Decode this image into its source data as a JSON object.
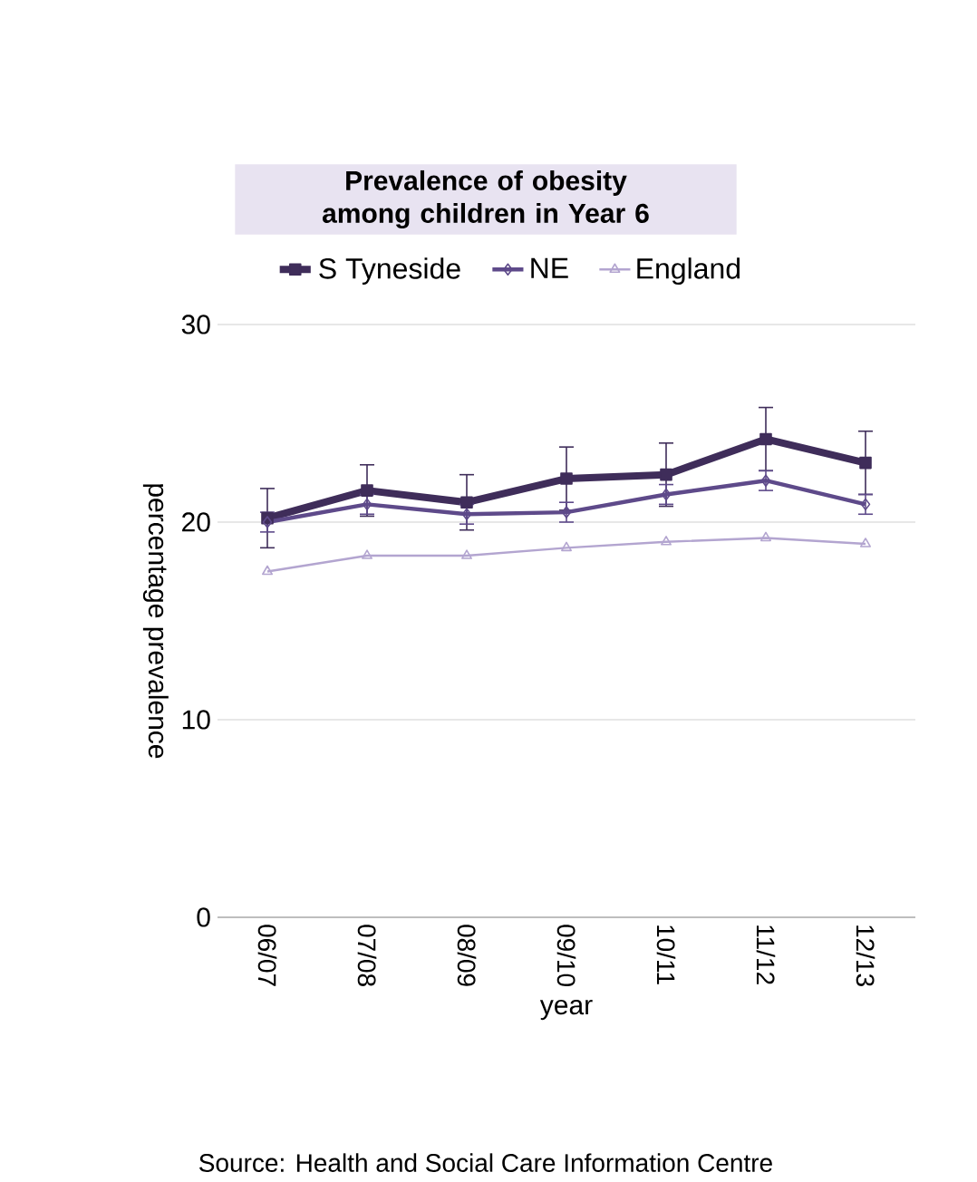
{
  "chart_data": {
    "type": "line",
    "title": "Prevalence of obesity among children in Year 6",
    "categories": [
      "06/07",
      "07/08",
      "08/09",
      "09/10",
      "10/11",
      "11/12",
      "12/13"
    ],
    "series": [
      {
        "name": "S Tyneside",
        "color": "#3f2d5a",
        "marker": "square",
        "values": [
          20.2,
          21.6,
          21.0,
          22.2,
          22.4,
          24.2,
          23.0
        ],
        "errors": [
          1.5,
          1.3,
          1.4,
          1.6,
          1.6,
          1.6,
          1.6
        ]
      },
      {
        "name": "NE",
        "color": "#5e4a8a",
        "marker": "diamond",
        "values": [
          20.0,
          20.9,
          20.4,
          20.5,
          21.4,
          22.1,
          20.9
        ],
        "errors": [
          0.5,
          0.5,
          0.5,
          0.5,
          0.5,
          0.5,
          0.5
        ]
      },
      {
        "name": "England",
        "color": "#b3a5d0",
        "marker": "triangle",
        "values": [
          17.5,
          18.3,
          18.3,
          18.7,
          19.0,
          19.2,
          18.9
        ]
      }
    ],
    "xlabel": "year",
    "ylabel": "percentage prevalence",
    "ylim": [
      0,
      30
    ],
    "yticks": [
      0,
      10,
      20,
      30
    ],
    "grid": "y",
    "legend": "top",
    "annotations": [
      "Source: Health and Social Care Information Centre"
    ]
  }
}
